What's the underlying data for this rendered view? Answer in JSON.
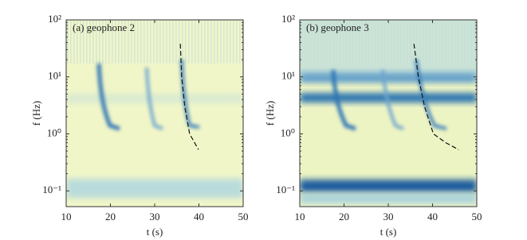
{
  "chart_data": [
    {
      "type": "spectrogram",
      "title": "(a) geophone 2",
      "xlabel": "t (s)",
      "ylabel": "f (Hz)",
      "xlim": [
        10,
        50
      ],
      "xticks": [
        10,
        20,
        30,
        40,
        50
      ],
      "ylim": [
        0.053,
        100
      ],
      "log_y": true,
      "yticks": [
        {
          "value": 0.1,
          "label": "10⁻¹"
        },
        {
          "value": 1,
          "label": "10⁰"
        },
        {
          "value": 10,
          "label": "10¹"
        },
        {
          "value": 100,
          "label": "10²"
        }
      ],
      "curve": {
        "x": [
          35.8,
          36.1,
          36.8,
          37.9,
          39.9
        ],
        "values": [
          38,
          10,
          3,
          1,
          0.53
        ],
        "color": "#111111",
        "dashed": true
      }
    },
    {
      "type": "spectrogram",
      "title": "(b) geophone 3",
      "xlabel": "t (s)",
      "ylabel": "f (Hz)",
      "xlim": [
        10,
        50
      ],
      "xticks": [
        10,
        20,
        30,
        40,
        50
      ],
      "ylim": [
        0.053,
        100
      ],
      "log_y": true,
      "yticks": [
        {
          "value": 0.1,
          "label": "10⁻¹"
        },
        {
          "value": 1,
          "label": "10⁰"
        },
        {
          "value": 10,
          "label": "10¹"
        },
        {
          "value": 100,
          "label": "10²"
        }
      ],
      "curve": {
        "x": [
          35.8,
          36.8,
          38.2,
          40.2,
          43,
          45.9
        ],
        "values": [
          38,
          10,
          3,
          1,
          0.7,
          0.53
        ],
        "color": "#111111",
        "dashed": true
      }
    }
  ]
}
